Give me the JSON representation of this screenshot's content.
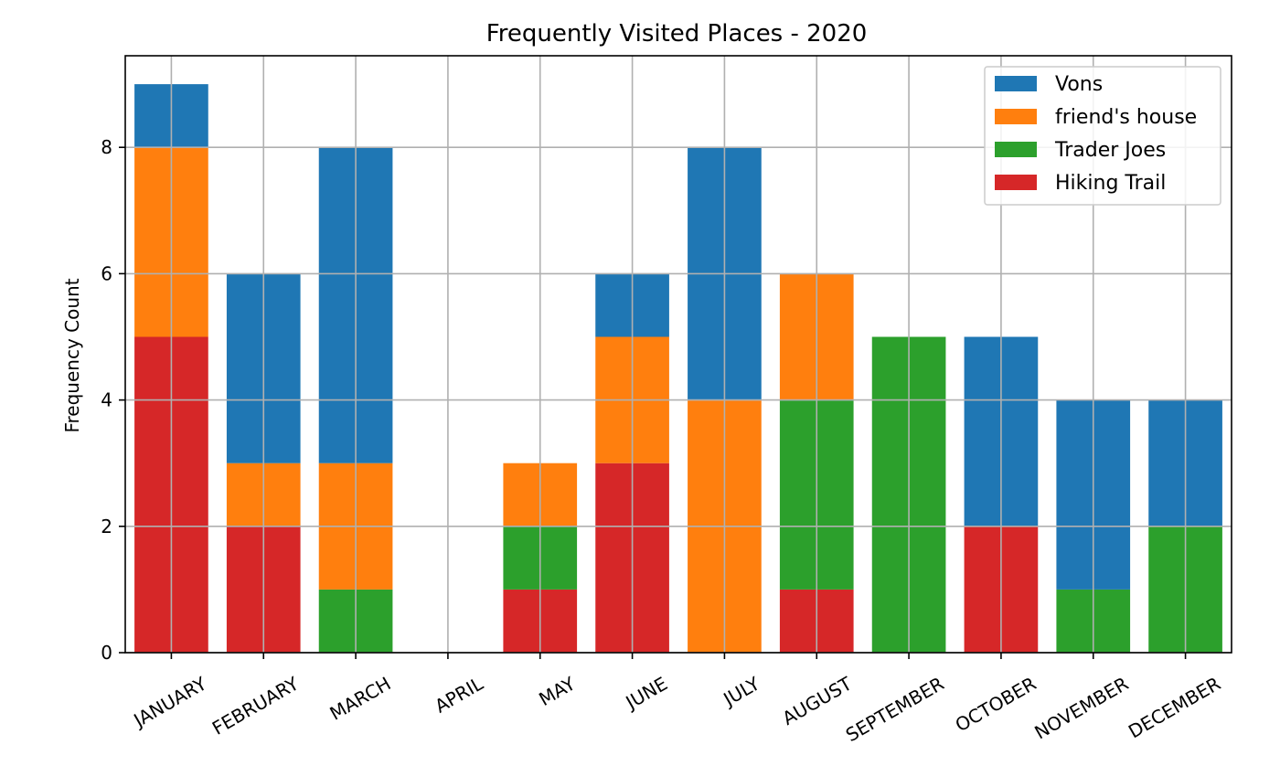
{
  "chart_data": {
    "type": "bar",
    "stacked": true,
    "title": "Frequently Visited Places - 2020",
    "xlabel": "",
    "ylabel": "Frequency Count",
    "ylim": [
      0,
      9.45
    ],
    "yticks": [
      0,
      2,
      4,
      6,
      8
    ],
    "grid": true,
    "legend_position": "top-right",
    "categories": [
      "JANUARY",
      "FEBRUARY",
      "MARCH",
      "APRIL",
      "MAY",
      "JUNE",
      "JULY",
      "AUGUST",
      "SEPTEMBER",
      "OCTOBER",
      "NOVEMBER",
      "DECEMBER"
    ],
    "series": [
      {
        "name": "Hiking Trail",
        "color": "#d62728",
        "values": [
          5,
          2,
          0,
          0,
          1,
          3,
          0,
          1,
          0,
          2,
          0,
          0
        ]
      },
      {
        "name": "Trader Joes",
        "color": "#2ca02c",
        "values": [
          0,
          0,
          1,
          0,
          1,
          0,
          0,
          3,
          5,
          0,
          1,
          2
        ]
      },
      {
        "name": "friend's house",
        "color": "#ff7f0e",
        "values": [
          3,
          1,
          2,
          0,
          1,
          2,
          4,
          2,
          0,
          0,
          0,
          0
        ]
      },
      {
        "name": "Vons",
        "color": "#1f77b4",
        "values": [
          1,
          3,
          5,
          0,
          0,
          1,
          4,
          0,
          0,
          3,
          3,
          2
        ]
      }
    ],
    "legend_order": [
      "Vons",
      "friend's house",
      "Trader Joes",
      "Hiking Trail"
    ]
  }
}
